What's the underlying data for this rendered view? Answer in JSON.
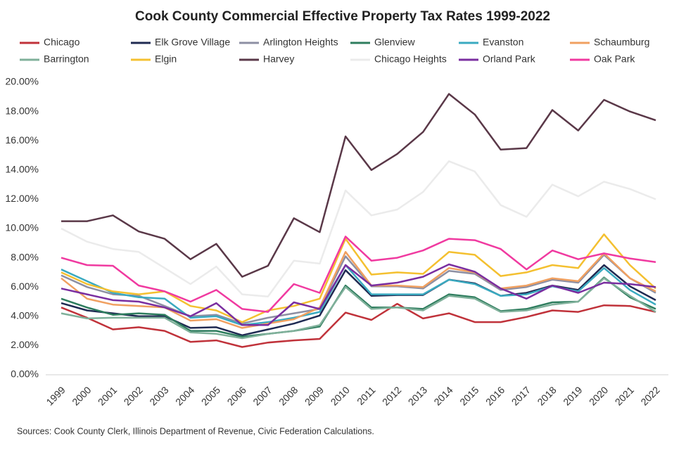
{
  "chart_data": {
    "type": "line",
    "title": "Cook County Commercial Effective Property Tax Rates 1999-2022",
    "source": "Sources: Cook County Clerk, Illinois Department of Revenue, Civic Federation Calculations.",
    "categories": [
      "1999",
      "2000",
      "2001",
      "2002",
      "2003",
      "2004",
      "2005",
      "2006",
      "2007",
      "2008",
      "2009",
      "2010",
      "2011",
      "2012",
      "2013",
      "2014",
      "2015",
      "2016",
      "2017",
      "2018",
      "2019",
      "2020",
      "2021",
      "2022"
    ],
    "ylim": [
      0,
      20
    ],
    "yticks": [
      {
        "value": 0,
        "label": "0.00%"
      },
      {
        "value": 2,
        "label": "2.00%"
      },
      {
        "value": 4,
        "label": "4.00%"
      },
      {
        "value": 6,
        "label": "6.00%"
      },
      {
        "value": 8,
        "label": "8.00%"
      },
      {
        "value": 10,
        "label": "10.00%"
      },
      {
        "value": 12,
        "label": "12.00%"
      },
      {
        "value": 14,
        "label": "14.00%"
      },
      {
        "value": 16,
        "label": "16.00%"
      },
      {
        "value": 18,
        "label": "18.00%"
      },
      {
        "value": 20,
        "label": "20.00%"
      }
    ],
    "legend": "top",
    "series": [
      {
        "name": "Chicago",
        "color": "#c0323a",
        "values": [
          4.6,
          3.9,
          3.1,
          3.25,
          3.0,
          2.25,
          2.35,
          1.9,
          2.2,
          2.35,
          2.45,
          4.25,
          3.75,
          4.85,
          3.85,
          4.2,
          3.6,
          3.6,
          3.95,
          4.4,
          4.3,
          4.75,
          4.7,
          4.3
        ]
      },
      {
        "name": "Elk Grove Village",
        "color": "#1f2a52",
        "values": [
          4.9,
          4.4,
          4.2,
          4.0,
          4.0,
          3.2,
          3.25,
          2.7,
          3.1,
          3.5,
          4.05,
          7.15,
          5.4,
          5.45,
          5.45,
          6.5,
          6.25,
          5.4,
          5.6,
          6.1,
          5.8,
          7.5,
          6.05,
          5.1
        ]
      },
      {
        "name": "Arlington Heights",
        "color": "#8d8fa3",
        "values": [
          6.8,
          6.0,
          5.5,
          5.4,
          4.7,
          4.0,
          4.1,
          3.5,
          3.9,
          4.2,
          4.5,
          8.1,
          6.05,
          6.05,
          5.9,
          7.1,
          6.9,
          5.8,
          6.0,
          6.5,
          6.3,
          8.2,
          6.6,
          5.6
        ]
      },
      {
        "name": "Glenview",
        "color": "#2e7d5e",
        "values": [
          5.2,
          4.6,
          4.1,
          4.2,
          4.1,
          3.0,
          3.0,
          2.6,
          2.8,
          3.0,
          3.3,
          6.1,
          4.6,
          4.6,
          4.5,
          5.5,
          5.3,
          4.35,
          4.5,
          4.95,
          5.0,
          6.65,
          5.3,
          4.5
        ]
      },
      {
        "name": "Evanston",
        "color": "#3aaac0",
        "values": [
          7.2,
          6.4,
          5.6,
          5.3,
          5.2,
          3.9,
          4.0,
          3.4,
          3.6,
          3.9,
          4.3,
          7.5,
          5.5,
          5.5,
          5.5,
          6.5,
          6.2,
          5.4,
          5.5,
          6.05,
          5.7,
          7.3,
          5.8,
          4.8
        ]
      },
      {
        "name": "Schaumburg",
        "color": "#f0a060",
        "values": [
          6.6,
          5.2,
          4.8,
          4.7,
          4.6,
          3.7,
          3.8,
          3.2,
          3.5,
          3.8,
          4.6,
          8.4,
          6.1,
          6.1,
          6.0,
          7.3,
          7.0,
          5.9,
          6.1,
          6.6,
          6.4,
          8.3,
          6.6,
          5.7
        ]
      },
      {
        "name": "Barrington",
        "color": "#7fb09a",
        "values": [
          4.2,
          3.85,
          3.9,
          3.9,
          3.9,
          2.9,
          2.8,
          2.5,
          2.8,
          3.0,
          3.4,
          6.0,
          4.5,
          4.6,
          4.4,
          5.4,
          5.2,
          4.3,
          4.4,
          4.8,
          5.0,
          6.6,
          5.4,
          4.3
        ]
      },
      {
        "name": "Elgin",
        "color": "#f4c030",
        "values": [
          7.0,
          6.2,
          5.7,
          5.5,
          5.7,
          4.7,
          4.4,
          3.6,
          4.4,
          4.7,
          5.2,
          9.3,
          6.85,
          7.0,
          6.9,
          8.4,
          8.2,
          6.75,
          7.0,
          7.5,
          7.3,
          9.6,
          7.5,
          5.9
        ]
      },
      {
        "name": "Harvey",
        "color": "#5a3848",
        "values": [
          10.5,
          10.5,
          10.9,
          9.8,
          9.3,
          7.9,
          8.95,
          6.7,
          7.45,
          10.7,
          9.75,
          16.3,
          14.0,
          15.1,
          16.6,
          19.2,
          17.8,
          15.4,
          15.5,
          18.1,
          16.7,
          18.8,
          18.0,
          17.4
        ]
      },
      {
        "name": "Chicago Heights",
        "color": "#ebebeb",
        "values": [
          10.0,
          9.1,
          8.6,
          8.4,
          7.3,
          6.2,
          7.4,
          5.5,
          5.35,
          7.8,
          7.6,
          12.6,
          10.9,
          11.3,
          12.5,
          14.6,
          13.9,
          11.6,
          10.8,
          13.0,
          12.2,
          13.2,
          12.7,
          12.0
        ]
      },
      {
        "name": "Orland Park",
        "color": "#7a2ea0",
        "values": [
          5.9,
          5.5,
          5.1,
          5.0,
          4.6,
          4.0,
          4.9,
          3.4,
          3.4,
          4.95,
          4.5,
          7.5,
          6.1,
          6.3,
          6.7,
          7.55,
          7.05,
          5.9,
          5.2,
          6.1,
          5.6,
          6.3,
          6.2,
          6.0
        ]
      },
      {
        "name": "Oak Park",
        "color": "#f03aa0",
        "values": [
          8.0,
          7.5,
          7.45,
          6.1,
          5.7,
          5.0,
          5.8,
          4.5,
          4.3,
          6.2,
          5.6,
          9.45,
          7.8,
          8.0,
          8.5,
          9.3,
          9.2,
          8.6,
          7.2,
          8.5,
          7.9,
          8.3,
          7.95,
          7.7
        ]
      }
    ]
  }
}
